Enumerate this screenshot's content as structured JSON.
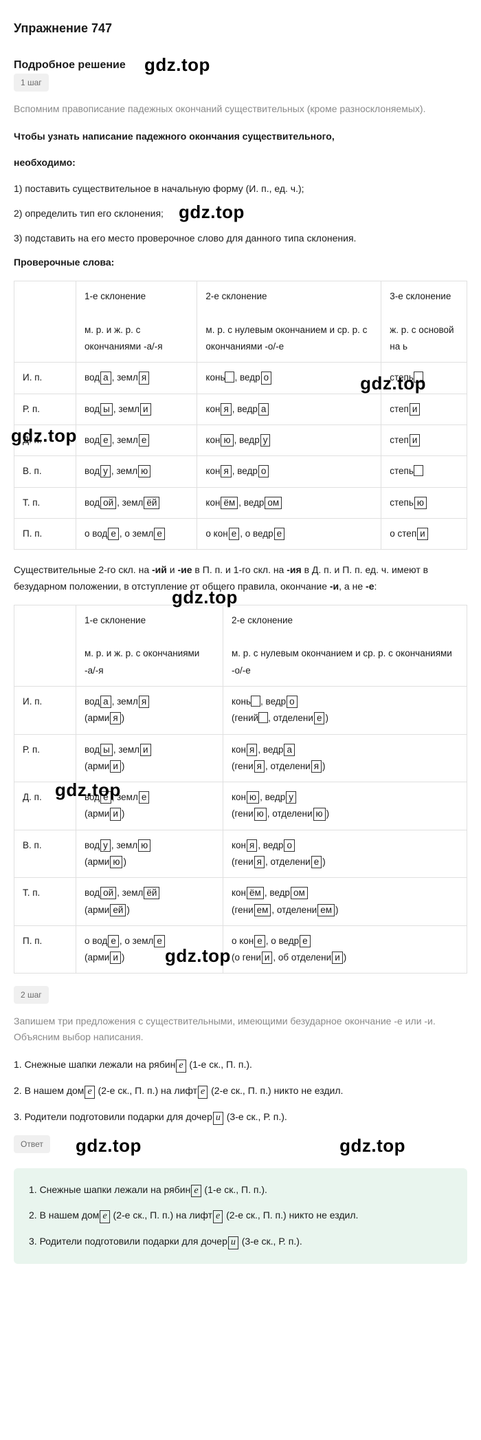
{
  "title": "Упражнение 747",
  "section_title": "Подробное решение",
  "watermarks": [
    "gdz.top",
    "gdz.top",
    "gdz.top",
    "gdz.top",
    "gdz.top",
    "gdz.top",
    "gdz.top",
    "gdz.top",
    "gdz.top"
  ],
  "step1_badge": "1 шаг",
  "step1_gray": "Вспомним правописание падежных окончаний существительных (кроме разносклоняемых).",
  "step1_bold_intro_a": "Чтобы узнать написание падежного окончания существительного,",
  "step1_bold_intro_b": "необходимо:",
  "step1_rules": [
    "1) поставить существительное в начальную форму (И. п., ед. ч.);",
    "2) определить тип его склонения;",
    "3) подставить на его место проверочное слово для данного типа склонения."
  ],
  "check_words_label": "Проверочные слова:",
  "table1": {
    "headers": [
      "",
      "1-е склонение\nм. р. и ж. р. с окончаниями -а/-я",
      "2-е склонение\nм. р. с нулевым окончанием и ср. р. с окончаниями -о/-е",
      "3-е склонение\nж. р. с основой на ь"
    ],
    "h_short": [
      "",
      "1-е склонение",
      "2-е склонение",
      "3-е склонение"
    ],
    "h_sub": [
      "",
      "м. р. и ж. р. с окончаниями -а/-я",
      "м. р. с нулевым окончанием и ср. р. с окончаниями -о/-е",
      "ж. р. с основой на ь"
    ],
    "cases": [
      "И. п.",
      "Р. п.",
      "Д. п.",
      "В. п.",
      "Т. п.",
      "П. п."
    ],
    "rows": [
      [
        [
          "вод",
          "а",
          ",  земл",
          "я"
        ],
        [
          "конь",
          "□",
          ",  ведр",
          "о"
        ],
        [
          "степь",
          "□"
        ]
      ],
      [
        [
          "вод",
          "ы",
          ",  земл",
          "и"
        ],
        [
          "кон",
          "я",
          ",  ведр",
          "а"
        ],
        [
          "степ",
          "и"
        ]
      ],
      [
        [
          "вод",
          "е",
          ",  земл",
          "е"
        ],
        [
          "кон",
          "ю",
          ",  ведр",
          "у"
        ],
        [
          "степ",
          "и"
        ]
      ],
      [
        [
          "вод",
          "у",
          ",  земл",
          "ю"
        ],
        [
          "кон",
          "я",
          ",  ведр",
          "о"
        ],
        [
          "степь",
          "□"
        ]
      ],
      [
        [
          "вод",
          "ой",
          ",  земл",
          "ёй"
        ],
        [
          "кон",
          "ём",
          ",  ведр",
          "ом"
        ],
        [
          "степь",
          "ю"
        ]
      ],
      [
        [
          "о вод",
          "е",
          ",  о земл",
          "е"
        ],
        [
          "о кон",
          "е",
          ",  о ведр",
          "е"
        ],
        [
          "о степ",
          "и"
        ]
      ]
    ]
  },
  "between_text_a": "Существительные 2-го скл. на ",
  "between_bold_1": "-ий",
  "between_text_b": " и ",
  "between_bold_2": "-ие",
  "between_text_c": " в П. п. и 1-го скл. на ",
  "between_bold_3": "-ия",
  "between_text_d": " в Д. п. и П. п. ед. ч. имеют в безударном положении, в отступление от общего правила, окончание ",
  "between_bold_4": "-и",
  "between_text_e": ", а не ",
  "between_bold_5": "-е",
  "between_text_f": ":",
  "table2": {
    "h_short": [
      "",
      "1-е склонение",
      "2-е склонение"
    ],
    "h_sub": [
      "",
      "м. р. и ж. р. с окончаниями -а/-я",
      "м. р. с нулевым окончанием и ср. р. с окончаниями -о/-е"
    ],
    "cases": [
      "И. п.",
      "Р. п.",
      "Д. п.",
      "В. п.",
      "Т. п.",
      "П. п."
    ],
    "rows": [
      [
        {
          "main": [
            "вод",
            "а",
            ",  земл",
            "я"
          ],
          "sub": [
            "арми",
            "я"
          ]
        },
        {
          "main": [
            "конь",
            "□",
            ",  ведр",
            "о"
          ],
          "sub": [
            "гений",
            "□",
            ",  отделени",
            "е"
          ]
        }
      ],
      [
        {
          "main": [
            "вод",
            "ы",
            ",  земл",
            "и"
          ],
          "sub": [
            "арми",
            "и"
          ]
        },
        {
          "main": [
            "кон",
            "я",
            ",  ведр",
            "а"
          ],
          "sub": [
            "гени",
            "я",
            ",  отделени",
            "я"
          ]
        }
      ],
      [
        {
          "main": [
            "вод",
            "е",
            ",  земл",
            "е"
          ],
          "sub": [
            "арми",
            "и"
          ]
        },
        {
          "main": [
            "кон",
            "ю",
            ",  ведр",
            "у"
          ],
          "sub": [
            "гени",
            "ю",
            ",  отделени",
            "ю"
          ]
        }
      ],
      [
        {
          "main": [
            "вод",
            "у",
            ",  земл",
            "ю"
          ],
          "sub": [
            "арми",
            "ю"
          ]
        },
        {
          "main": [
            "кон",
            "я",
            ",  ведр",
            "о"
          ],
          "sub": [
            "гени",
            "я",
            ",  отделени",
            "е"
          ]
        }
      ],
      [
        {
          "main": [
            "вод",
            "ой",
            ",  земл",
            "ёй"
          ],
          "sub": [
            "арми",
            "ей"
          ]
        },
        {
          "main": [
            "кон",
            "ём",
            ",  ведр",
            "ом"
          ],
          "sub": [
            "гени",
            "ем",
            ",  отделени",
            "ем"
          ]
        }
      ],
      [
        {
          "main": [
            "о вод",
            "е",
            ",  о земл",
            "е"
          ],
          "sub": [
            "арми",
            "и"
          ]
        },
        {
          "main": [
            "о кон",
            "е",
            ",  о ведр",
            "е"
          ],
          "sub": [
            "о гени",
            "и",
            ",  об отделени",
            "и"
          ]
        }
      ]
    ],
    "bold_cases": [
      "Д. п.",
      "П. п."
    ]
  },
  "step2_badge": "2 шаг",
  "step2_gray": "Запишем три предложения с существительными, имеющими безударное окончание -е или -и. Объясним выбор написания.",
  "sentences": [
    {
      "pre": "1. Снежные шапки лежали на рябин",
      "box": "е",
      "post": " (1-е ск., П. п.)."
    },
    {
      "pre": "2. В нашем дом",
      "box": "е",
      "mid": " (2-е ск., П. п.) на лифт",
      "box2": "е",
      "post": " (2-е ск., П. п.) никто не ездил."
    },
    {
      "pre": "3. Родители подготовили подарки для дочер",
      "box": "и",
      "post": " (3-е ск., Р. п.)."
    }
  ],
  "answer_label": "Ответ",
  "answer_sentences": [
    {
      "pre": "1. Снежные шапки лежали на рябин",
      "box": "е",
      "post": " (1-е ск., П. п.)."
    },
    {
      "pre": "2. В нашем дом",
      "box": "е",
      "mid": " (2-е ск., П. п.) на лифт",
      "box2": "е",
      "post": " (2-е ск., П. п.) никто не ездил."
    },
    {
      "pre": "3. Родители подготовили подарки для дочер",
      "box": "и",
      "post": " (3-е ск., Р. п.)."
    }
  ],
  "colors": {
    "text": "#1a1a1a",
    "gray": "#8a8a8a",
    "badge_bg": "#f0f0f0",
    "badge_text": "#6b6b6b",
    "border": "#e0e0e0",
    "answer_bg": "#e9f5ee",
    "box_border": "#333333"
  }
}
